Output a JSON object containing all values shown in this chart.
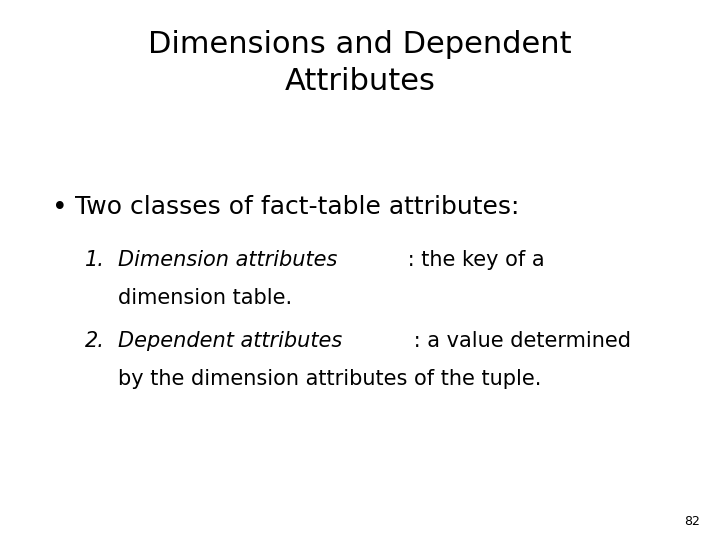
{
  "title_line1": "Dimensions and Dependent",
  "title_line2": "Attributes",
  "bullet": "Two classes of fact-table attributes:",
  "item1_italic": "Dimension attributes",
  "item1_normal": " : the key of a",
  "item1_cont": "dimension table.",
  "item2_italic": "Dependent attributes",
  "item2_normal": " : a value determined",
  "item2_cont": "by the dimension attributes of the tuple.",
  "page_number": "82",
  "background_color": "#ffffff",
  "text_color": "#000000",
  "title_fontsize": 22,
  "bullet_fontsize": 18,
  "item_fontsize": 15,
  "page_fontsize": 9
}
